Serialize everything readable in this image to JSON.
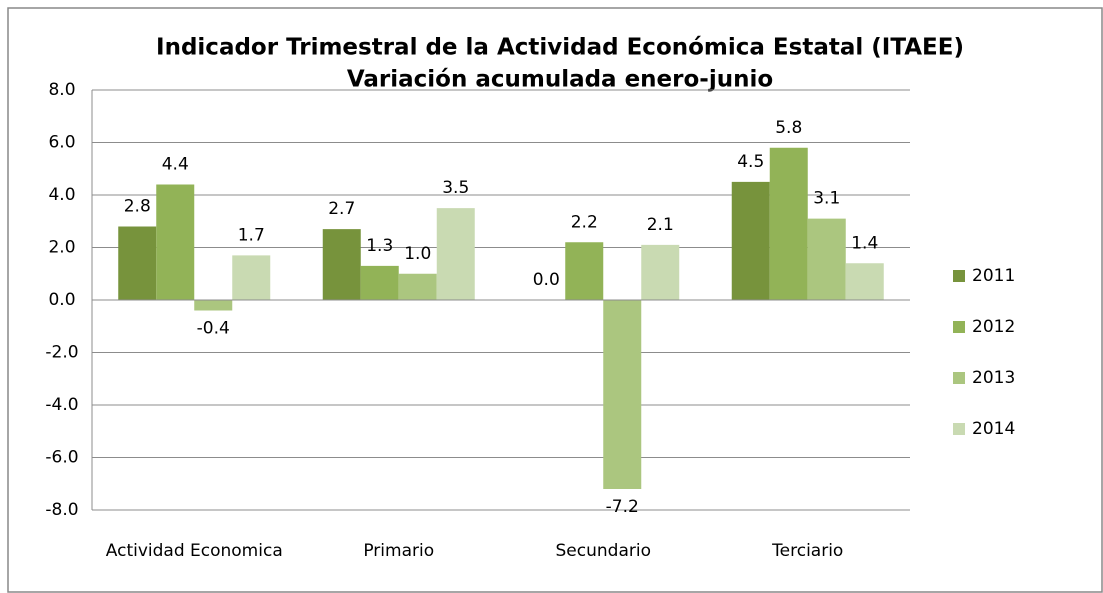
{
  "chart_data": {
    "type": "bar",
    "title": "Indicador Trimestral de la Actividad Económica Estatal (ITAEE)",
    "subtitle": "Variación acumulada enero-junio",
    "categories": [
      "Actividad Economica",
      "Primario",
      "Secundario",
      "Terciario"
    ],
    "series": [
      {
        "name": "2011",
        "color": "#77933c",
        "values": [
          2.8,
          2.7,
          0.0,
          4.5
        ],
        "value_labels": [
          "2.8",
          "2.7",
          "0.0",
          "4.5"
        ]
      },
      {
        "name": "2012",
        "color": "#92b357",
        "values": [
          4.4,
          1.3,
          2.2,
          5.8
        ],
        "value_labels": [
          "4.4",
          "1.3",
          "2.2",
          "5.8"
        ]
      },
      {
        "name": "2013",
        "color": "#abc67f",
        "values": [
          -0.4,
          1.0,
          -7.2,
          3.1
        ],
        "value_labels": [
          "-0.4",
          "1.0",
          "-7.2",
          "3.1"
        ]
      },
      {
        "name": "2014",
        "color": "#c9dab2",
        "values": [
          1.7,
          3.5,
          2.1,
          1.4
        ],
        "value_labels": [
          "1.7",
          "3.5",
          "2.1",
          "1.4"
        ]
      }
    ],
    "ylim": [
      -8,
      8
    ],
    "yticks": [
      {
        "value": -8,
        "label": "-8.0"
      },
      {
        "value": -6,
        "label": "-6.0"
      },
      {
        "value": -4,
        "label": "-4.0"
      },
      {
        "value": -2,
        "label": "-2.0"
      },
      {
        "value": 0,
        "label": "0.0"
      },
      {
        "value": 2,
        "label": "2.0"
      },
      {
        "value": 4,
        "label": "4.0"
      },
      {
        "value": 6,
        "label": "6.0"
      },
      {
        "value": 8,
        "label": "8.0"
      }
    ],
    "grid": true,
    "legend": "right"
  }
}
